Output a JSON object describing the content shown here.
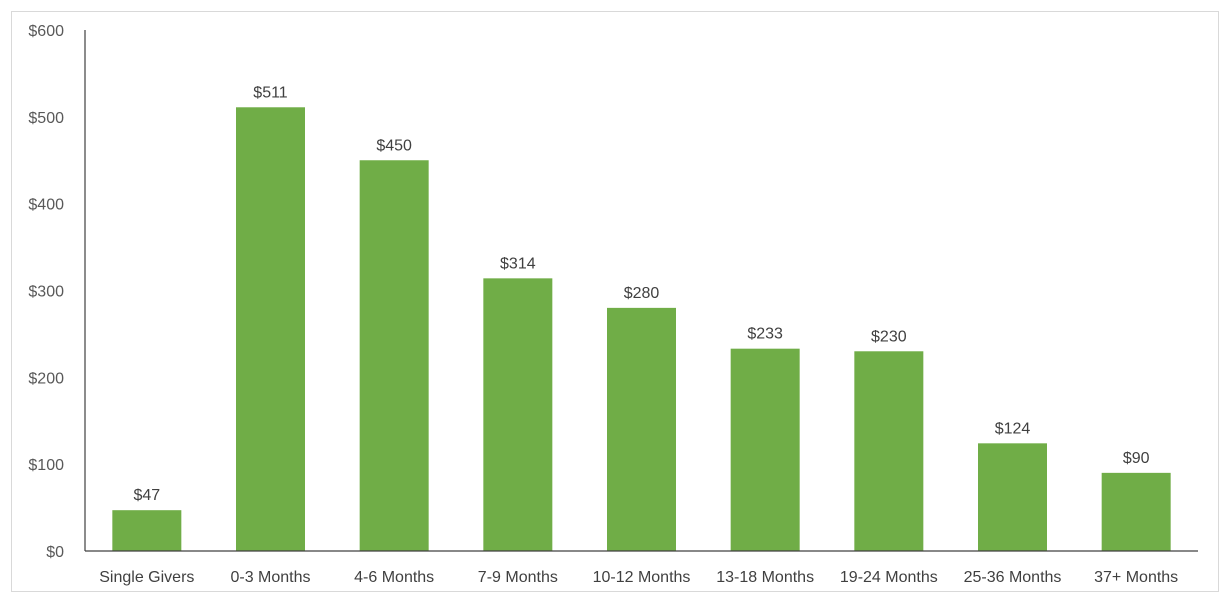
{
  "chart_data": {
    "type": "bar",
    "categories": [
      "Single Givers",
      "0-3 Months",
      "4-6 Months",
      "7-9 Months",
      "10-12 Months",
      "13-18 Months",
      "19-24 Months",
      "25-36 Months",
      "37+ Months"
    ],
    "values": [
      47,
      511,
      450,
      314,
      280,
      233,
      230,
      124,
      90
    ],
    "data_labels": [
      "$47",
      "$511",
      "$450",
      "$314",
      "$280",
      "$233",
      "$230",
      "$124",
      "$90"
    ],
    "y_ticks": [
      0,
      100,
      200,
      300,
      400,
      500,
      600
    ],
    "y_tick_labels": [
      "$0",
      "$100",
      "$200",
      "$300",
      "$400",
      "$500",
      "$600"
    ],
    "ylim": [
      0,
      600
    ],
    "title": "",
    "xlabel": "",
    "ylabel": "",
    "grid": false,
    "legend": "none",
    "bar_color": "#70ad47",
    "axis_color": "#404040"
  }
}
